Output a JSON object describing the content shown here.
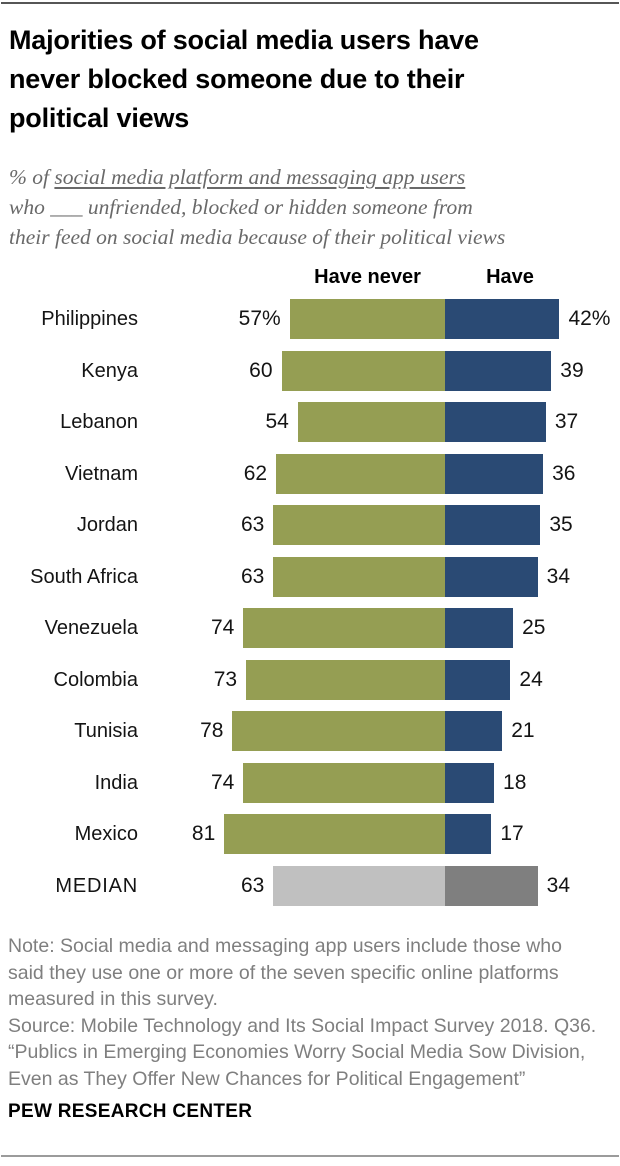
{
  "header": {
    "title_lines": [
      "Majorities of social media users have",
      "never blocked someone due to their",
      "political views"
    ],
    "subtitle": {
      "line1_prefix": "% of ",
      "line1_underlined": "social media platform and messaging app users",
      "line2": "who ___ unfriended, blocked or hidden someone from",
      "line3": "their feed on social media because of their political views"
    }
  },
  "chart_data": {
    "type": "bar",
    "orientation": "diverging-horizontal",
    "title": "Majorities of social media users have never blocked someone due to their political views",
    "unit": "%",
    "xlim": [
      0,
      100
    ],
    "legend_position": "top",
    "categories": [
      "Philippines",
      "Kenya",
      "Lebanon",
      "Vietnam",
      "Jordan",
      "South Africa",
      "Venezuela",
      "Colombia",
      "Tunisia",
      "India",
      "Mexico",
      "MEDIAN"
    ],
    "median_category": "MEDIAN",
    "series": [
      {
        "name": "Have never",
        "side": "left",
        "color": "#959E53",
        "median_color": "#C0C0C0",
        "values": [
          57,
          60,
          54,
          62,
          63,
          63,
          74,
          73,
          78,
          74,
          81,
          63
        ],
        "labels": [
          "57%",
          "60",
          "54",
          "62",
          "63",
          "63",
          "74",
          "73",
          "78",
          "74",
          "81",
          "63"
        ]
      },
      {
        "name": "Have",
        "side": "right",
        "color": "#2A4A74",
        "median_color": "#7F7F7F",
        "values": [
          42,
          39,
          37,
          36,
          35,
          34,
          25,
          24,
          21,
          18,
          17,
          34
        ],
        "labels": [
          "42%",
          "39",
          "37",
          "36",
          "35",
          "34",
          "25",
          "24",
          "21",
          "18",
          "17",
          "34"
        ]
      }
    ]
  },
  "footer": {
    "lines": [
      "Note: Social media and messaging app users include those who",
      "said they use one or more of the seven specific online platforms",
      "measured in this survey.",
      "Source: Mobile Technology and Its Social Impact Survey 2018. Q36.",
      "“Publics in Emerging Economies Worry Social Media Sow Division,",
      "Even as They Offer New Chances for Political Engagement”"
    ],
    "brand": "PEW RESEARCH CENTER"
  }
}
